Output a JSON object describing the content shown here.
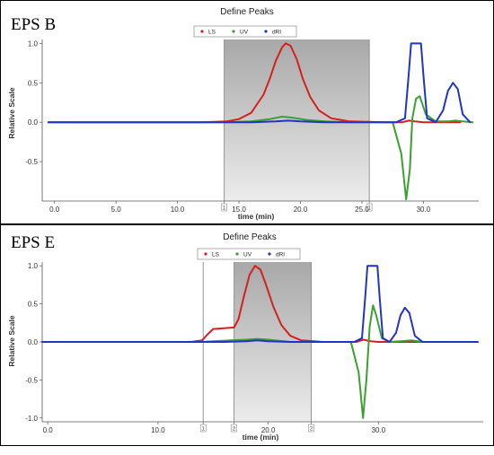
{
  "panels": [
    {
      "label": "EPS B"
    },
    {
      "label": "EPS E"
    }
  ],
  "colors": {
    "LS": "#d42020",
    "UV": "#3aa12f",
    "dRI": "#2134c4",
    "shade": "#c8c8c8"
  },
  "chart_data": [
    {
      "type": "line",
      "title": "Define Peaks",
      "xlabel": "time (min)",
      "ylabel": "Relative Scale",
      "xlim": [
        -1,
        34.5
      ],
      "ylim": [
        -1.0,
        1.05
      ],
      "xticks": [
        0,
        5,
        10,
        15,
        20,
        25,
        30
      ],
      "xtick_labels": [
        "0.0",
        "5.0",
        "10.0",
        "15.0",
        "20.0",
        "25.0",
        "30.0"
      ],
      "yticks": [
        -0.5,
        0,
        0.5,
        1
      ],
      "ytick_labels": [
        "-0.5",
        "0.0",
        "0.5",
        "1.0"
      ],
      "legend": {
        "placement": "top-center",
        "entries": [
          "LS",
          "UV",
          "dRI"
        ]
      },
      "shaded_region": [
        13.8,
        25.6
      ],
      "markers": [
        {
          "x": 13.8,
          "label": "1"
        },
        {
          "x": 25.6,
          "label": "1"
        }
      ],
      "series": [
        {
          "name": "LS",
          "x": [
            -0.5,
            12,
            14,
            15,
            16,
            17,
            17.5,
            18,
            18.5,
            18.8,
            19.2,
            19.7,
            20.2,
            20.8,
            21.5,
            22.5,
            24,
            27,
            28.3,
            28.8,
            29.3,
            30,
            33
          ],
          "y": [
            0,
            0,
            0.01,
            0.04,
            0.12,
            0.35,
            0.55,
            0.78,
            0.95,
            1.0,
            0.97,
            0.8,
            0.55,
            0.32,
            0.15,
            0.05,
            0.01,
            0,
            0,
            0.02,
            0.01,
            0,
            0
          ]
        },
        {
          "name": "UV",
          "x": [
            -0.5,
            14,
            16,
            17.5,
            18.5,
            19.2,
            20.5,
            22,
            24,
            27.5,
            28.2,
            28.6,
            28.9,
            29.1,
            29.4,
            29.7,
            30.2,
            31,
            32,
            32.6,
            33.2,
            34
          ],
          "y": [
            0,
            0,
            0.01,
            0.04,
            0.07,
            0.06,
            0.03,
            0.01,
            0,
            0,
            -0.4,
            -0.98,
            -0.6,
            0.05,
            0.3,
            0.33,
            0.1,
            0.01,
            0.01,
            0.02,
            0.01,
            0
          ]
        },
        {
          "name": "dRI",
          "x": [
            -0.5,
            16,
            18,
            19,
            20,
            22,
            27.8,
            28.5,
            28.8,
            29,
            29.8,
            30,
            30.3,
            31,
            31.6,
            32,
            32.4,
            32.8,
            33.2,
            33.8
          ],
          "y": [
            0,
            0,
            0.01,
            0.02,
            0.01,
            0,
            0,
            0.05,
            0.6,
            1.0,
            1.0,
            0.6,
            0.05,
            0,
            0.15,
            0.4,
            0.5,
            0.42,
            0.1,
            0
          ]
        }
      ]
    },
    {
      "type": "line",
      "title": "Define Peaks",
      "xlabel": "time (min)",
      "ylabel": "Relative Scale",
      "xlim": [
        -0.5,
        39.5
      ],
      "ylim": [
        -1.05,
        1.05
      ],
      "xticks": [
        0,
        10,
        20,
        30
      ],
      "xtick_labels": [
        "0.0",
        "10.0",
        "20.0",
        "30.0"
      ],
      "yticks": [
        -1,
        -0.5,
        0,
        0.5,
        1
      ],
      "ytick_labels": [
        "-1.0",
        "-0.5",
        "0.0",
        "0.5",
        "1.0"
      ],
      "legend": {
        "placement": "top-center",
        "entries": [
          "LS",
          "UV",
          "dRI"
        ]
      },
      "shaded_region": [
        16.9,
        23.9
      ],
      "markers": [
        {
          "x": 14.1,
          "label": "1"
        },
        {
          "x": 16.9,
          "label": "2"
        },
        {
          "x": 23.9,
          "label": "2"
        }
      ],
      "series": [
        {
          "name": "LS",
          "x": [
            -0.5,
            13,
            14,
            14.5,
            15,
            16,
            16.9,
            17.3,
            17.8,
            18.3,
            18.8,
            19.3,
            19.8,
            20.5,
            21.2,
            22,
            23,
            25,
            28,
            28.6,
            29.3,
            30,
            39
          ],
          "y": [
            0,
            0,
            0.02,
            0.1,
            0.17,
            0.18,
            0.19,
            0.3,
            0.6,
            0.88,
            1.0,
            0.95,
            0.75,
            0.45,
            0.22,
            0.08,
            0.02,
            0,
            0,
            0.03,
            0.01,
            0,
            0
          ]
        },
        {
          "name": "UV",
          "x": [
            -0.5,
            14,
            15,
            18,
            19,
            20,
            22,
            27.5,
            28.2,
            28.6,
            28.9,
            29.2,
            29.5,
            29.8,
            30.3,
            31,
            32,
            33,
            34,
            39
          ],
          "y": [
            0,
            0,
            0.01,
            0.03,
            0.04,
            0.03,
            0,
            0,
            -0.4,
            -1.0,
            -0.5,
            0.2,
            0.48,
            0.35,
            0.05,
            0,
            0.01,
            0.02,
            0,
            0
          ]
        },
        {
          "name": "dRI",
          "x": [
            -0.5,
            16,
            18,
            19,
            20,
            22,
            27.8,
            28.5,
            28.8,
            29,
            29.9,
            30.1,
            30.4,
            31,
            31.6,
            32,
            32.4,
            32.8,
            33.3,
            34,
            39
          ],
          "y": [
            0,
            0,
            0.01,
            0.02,
            0.01,
            0,
            0,
            0.05,
            0.6,
            1.0,
            1.0,
            0.6,
            0.05,
            0,
            0.12,
            0.35,
            0.45,
            0.38,
            0.08,
            0,
            0
          ]
        }
      ]
    }
  ]
}
